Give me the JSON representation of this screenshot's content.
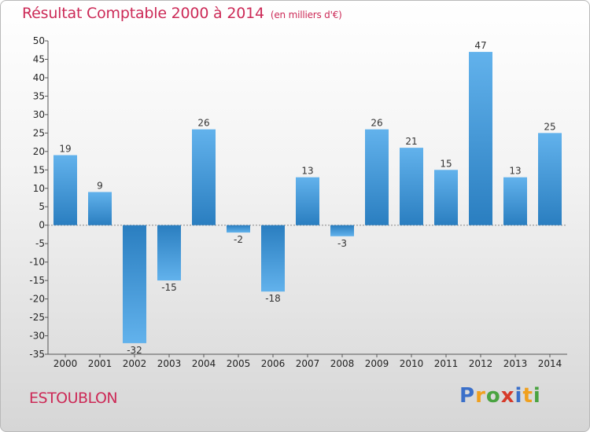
{
  "title": "Résultat Comptable 2000 à 2014",
  "subtitle": "(en milliers d'€)",
  "place": "ESTOUBLON",
  "logo": {
    "letters": [
      "P",
      "r",
      "o",
      "x",
      "i",
      "t",
      "i"
    ],
    "colors": [
      "#3a6fc9",
      "#f0a01e",
      "#4aa341",
      "#d63a2a",
      "#3a6fc9",
      "#f0a01e",
      "#4aa341"
    ]
  },
  "colors": {
    "bar_light": "#62b2ec",
    "bar_dark": "#2a7ec0",
    "title": "#cc2a57"
  },
  "chart_data": {
    "type": "bar",
    "categories": [
      "2000",
      "2001",
      "2002",
      "2003",
      "2004",
      "2005",
      "2006",
      "2007",
      "2008",
      "2009",
      "2010",
      "2011",
      "2012",
      "2013",
      "2014"
    ],
    "values": [
      19,
      9,
      -32,
      -15,
      26,
      -2,
      -18,
      13,
      -3,
      26,
      21,
      15,
      47,
      13,
      25
    ],
    "ylim": [
      -35,
      50
    ],
    "yticks": [
      50,
      45,
      40,
      35,
      30,
      25,
      20,
      15,
      10,
      5,
      0,
      -5,
      -10,
      -15,
      -20,
      -25,
      -30,
      -35
    ],
    "grid": false
  }
}
